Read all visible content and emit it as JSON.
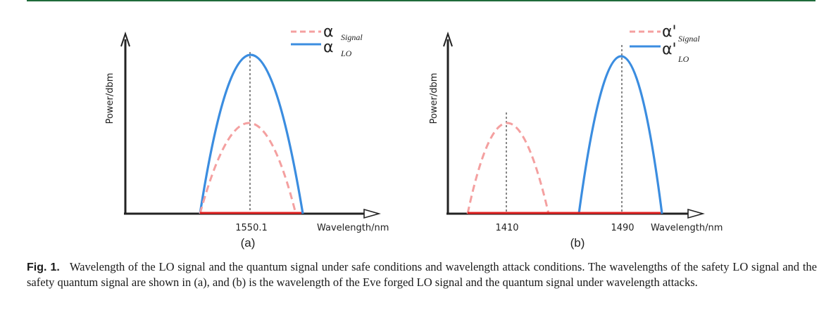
{
  "chart_data": [
    {
      "type": "line",
      "panel_label": "(a)",
      "xlabel": "Wavelength/nm",
      "ylabel": "Power/dbm",
      "x_ticks": [
        "1550.1"
      ],
      "legend": [
        {
          "symbol": "α",
          "subscript": "Signal",
          "style": "dashed",
          "color": "#f4a0a0"
        },
        {
          "symbol": "α",
          "subscript": "LO",
          "style": "solid",
          "color": "#3b8de0"
        }
      ],
      "series": [
        {
          "name": "α Signal",
          "center": 1550.1,
          "relative_peak": 0.58
        },
        {
          "name": "α LO",
          "center": 1550.1,
          "relative_peak": 1.0
        }
      ],
      "baseline_color": "#e02020",
      "marker_line": "dotted vertical at center"
    },
    {
      "type": "line",
      "panel_label": "(b)",
      "xlabel": "Wavelength/nm",
      "ylabel": "Power/dbm",
      "x_ticks": [
        "1410",
        "1490"
      ],
      "legend": [
        {
          "symbol": "α'",
          "subscript": "Signal",
          "style": "dashed",
          "color": "#f4a0a0"
        },
        {
          "symbol": "α'",
          "subscript": "LO",
          "style": "solid",
          "color": "#3b8de0"
        }
      ],
      "series": [
        {
          "name": "α' Signal",
          "center": 1410,
          "relative_peak": 0.58
        },
        {
          "name": "α' LO",
          "center": 1490,
          "relative_peak": 1.0
        }
      ],
      "baseline_color": "#e02020",
      "marker_line": "dotted vertical at centers"
    }
  ],
  "caption": {
    "label": "Fig. 1.",
    "text": "Wavelength of the LO signal and the quantum signal under safe conditions and wavelength attack conditions. The wavelengths of the safety LO signal and the safety quantum signal are shown in (a), and (b) is the wavelength of the Eve forged LO signal and the quantum signal under wavelength attacks."
  }
}
